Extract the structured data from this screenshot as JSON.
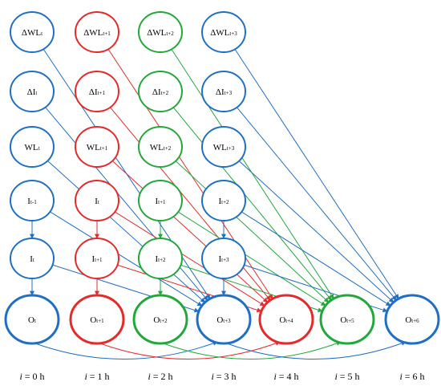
{
  "colors": {
    "blue": "#1f6fc4",
    "red": "#e52a2a",
    "green": "#21a83a"
  },
  "columns": [
    {
      "id": "c0",
      "color": "blue",
      "time_label": "i = 0 h"
    },
    {
      "id": "c1",
      "color": "red",
      "time_label": "i = 1 h"
    },
    {
      "id": "c2",
      "color": "green",
      "time_label": "i = 2 h"
    },
    {
      "id": "c3",
      "color": "blue",
      "time_label": "i = 3 h"
    },
    {
      "id": "c4",
      "color": "red",
      "time_label": "i = 4 h"
    },
    {
      "id": "c5",
      "color": "green",
      "time_label": "i = 5 h"
    },
    {
      "id": "c6",
      "color": "blue",
      "time_label": "i = 6 h"
    }
  ],
  "nodes": [
    {
      "id": "dWL0",
      "col": 0,
      "row": 0,
      "base": "ΔWL",
      "sub": "t"
    },
    {
      "id": "dWL1",
      "col": 1,
      "row": 0,
      "base": "ΔWL",
      "sub": "t+1"
    },
    {
      "id": "dWL2",
      "col": 2,
      "row": 0,
      "base": "ΔWL",
      "sub": "t+2"
    },
    {
      "id": "dWL3",
      "col": 3,
      "row": 0,
      "base": "ΔWL",
      "sub": "t+3"
    },
    {
      "id": "dI0",
      "col": 0,
      "row": 1,
      "base": "ΔI",
      "sub": "t"
    },
    {
      "id": "dI1",
      "col": 1,
      "row": 1,
      "base": "ΔI",
      "sub": "t+1"
    },
    {
      "id": "dI2",
      "col": 2,
      "row": 1,
      "base": "ΔI",
      "sub": "t+2"
    },
    {
      "id": "dI3",
      "col": 3,
      "row": 1,
      "base": "ΔI",
      "sub": "t+3"
    },
    {
      "id": "WL0",
      "col": 0,
      "row": 2,
      "base": "WL",
      "sub": "t"
    },
    {
      "id": "WL1",
      "col": 1,
      "row": 2,
      "base": "WL",
      "sub": "t+1"
    },
    {
      "id": "WL2",
      "col": 2,
      "row": 2,
      "base": "WL",
      "sub": "t+2"
    },
    {
      "id": "WL3",
      "col": 3,
      "row": 2,
      "base": "WL",
      "sub": "t+3"
    },
    {
      "id": "Ia0",
      "col": 0,
      "row": 3,
      "base": "I",
      "sub": "t-1"
    },
    {
      "id": "Ia1",
      "col": 1,
      "row": 3,
      "base": "I",
      "sub": "t"
    },
    {
      "id": "Ia2",
      "col": 2,
      "row": 3,
      "base": "I",
      "sub": "t+1"
    },
    {
      "id": "Ia3",
      "col": 3,
      "row": 3,
      "base": "I",
      "sub": "t+2"
    },
    {
      "id": "Ib0",
      "col": 0,
      "row": 4,
      "base": "I",
      "sub": "t"
    },
    {
      "id": "Ib1",
      "col": 1,
      "row": 4,
      "base": "I",
      "sub": "t+1"
    },
    {
      "id": "Ib2",
      "col": 2,
      "row": 4,
      "base": "I",
      "sub": "t+2"
    },
    {
      "id": "Ib3",
      "col": 3,
      "row": 4,
      "base": "I",
      "sub": "t+3"
    },
    {
      "id": "O0",
      "col": 0,
      "row": 5,
      "base": "O",
      "sub": "t",
      "output": true
    },
    {
      "id": "O1",
      "col": 1,
      "row": 5,
      "base": "O",
      "sub": "t+1",
      "output": true
    },
    {
      "id": "O2",
      "col": 2,
      "row": 5,
      "base": "O",
      "sub": "t+2",
      "output": true
    },
    {
      "id": "O3",
      "col": 3,
      "row": 5,
      "base": "O",
      "sub": "t+3",
      "output": true
    },
    {
      "id": "O4",
      "col": 4,
      "row": 5,
      "base": "O",
      "sub": "t+4",
      "output": true
    },
    {
      "id": "O5",
      "col": 5,
      "row": 5,
      "base": "O",
      "sub": "t+5",
      "output": true
    },
    {
      "id": "O6",
      "col": 6,
      "row": 5,
      "base": "O",
      "sub": "t+6",
      "output": true
    }
  ],
  "edges": [
    {
      "from": "Ia0",
      "to": "Ib0",
      "color": "blue"
    },
    {
      "from": "Ib0",
      "to": "O0",
      "color": "blue"
    },
    {
      "from": "Ia1",
      "to": "Ib1",
      "color": "red"
    },
    {
      "from": "Ib1",
      "to": "O1",
      "color": "red"
    },
    {
      "from": "Ia2",
      "to": "Ib2",
      "color": "green"
    },
    {
      "from": "Ib2",
      "to": "O2",
      "color": "green"
    },
    {
      "from": "Ia3",
      "to": "Ib3",
      "color": "blue"
    },
    {
      "from": "Ib3",
      "to": "O3",
      "color": "blue"
    },
    {
      "from": "dWL0",
      "to": "O3",
      "color": "blue"
    },
    {
      "from": "dI0",
      "to": "O3",
      "color": "blue"
    },
    {
      "from": "WL0",
      "to": "O3",
      "color": "blue"
    },
    {
      "from": "Ia0",
      "to": "O3",
      "color": "blue"
    },
    {
      "from": "Ib0",
      "to": "O3",
      "color": "blue"
    },
    {
      "from": "O0",
      "to": "O3",
      "color": "blue",
      "curve": true
    },
    {
      "from": "dWL1",
      "to": "O4",
      "color": "red"
    },
    {
      "from": "dI1",
      "to": "O4",
      "color": "red"
    },
    {
      "from": "WL1",
      "to": "O4",
      "color": "red"
    },
    {
      "from": "Ia1",
      "to": "O4",
      "color": "red"
    },
    {
      "from": "Ib1",
      "to": "O4",
      "color": "red"
    },
    {
      "from": "O1",
      "to": "O4",
      "color": "red",
      "curve": true
    },
    {
      "from": "dWL2",
      "to": "O5",
      "color": "green"
    },
    {
      "from": "dI2",
      "to": "O5",
      "color": "green"
    },
    {
      "from": "WL2",
      "to": "O5",
      "color": "green"
    },
    {
      "from": "Ia2",
      "to": "O5",
      "color": "green"
    },
    {
      "from": "Ib2",
      "to": "O5",
      "color": "green"
    },
    {
      "from": "O2",
      "to": "O5",
      "color": "green",
      "curve": true
    },
    {
      "from": "dWL3",
      "to": "O6",
      "color": "blue"
    },
    {
      "from": "dI3",
      "to": "O6",
      "color": "blue"
    },
    {
      "from": "WL3",
      "to": "O6",
      "color": "blue"
    },
    {
      "from": "Ia3",
      "to": "O6",
      "color": "blue"
    },
    {
      "from": "Ib3",
      "to": "O6",
      "color": "blue"
    },
    {
      "from": "O3",
      "to": "O6",
      "color": "blue",
      "curve": true
    }
  ]
}
